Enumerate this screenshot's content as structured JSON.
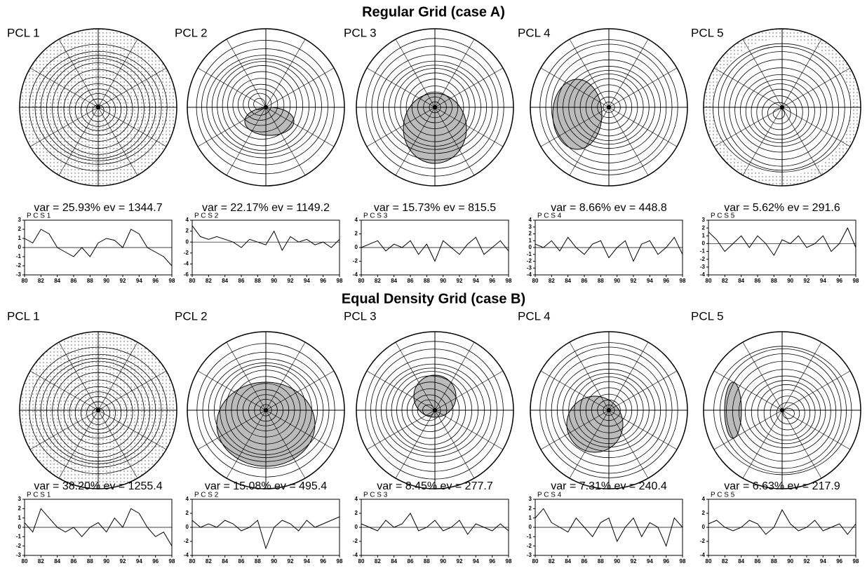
{
  "x": [
    80,
    81,
    82,
    83,
    84,
    85,
    86,
    87,
    88,
    89,
    90,
    91,
    92,
    93,
    94,
    95,
    96,
    97,
    98
  ],
  "xlim": [
    80,
    98
  ],
  "xticks": [
    80,
    82,
    84,
    86,
    88,
    90,
    92,
    94,
    96,
    98
  ],
  "sections": [
    {
      "title": "Regular Grid  (case A)",
      "panels": [
        {
          "label": "PCL 1",
          "stats": "var = 25.93%   ev = 1344.7",
          "series": {
            "title": "P C S   1",
            "ylim": [
              -3,
              3
            ],
            "yticks": [
              -3,
              -2,
              -1,
              0,
              1,
              2,
              3
            ],
            "values": [
              1,
              0.5,
              2,
              1.5,
              0,
              -0.5,
              -1,
              0,
              -1,
              0.5,
              1,
              0.8,
              0,
              2,
              1.5,
              0,
              -0.5,
              -1,
              -2
            ]
          }
        },
        {
          "label": "PCL 2",
          "stats": "var = 22.17%   ev = 1149.2",
          "series": {
            "title": "P C S   2",
            "ylim": [
              -6,
              4
            ],
            "yticks": [
              -6,
              -4,
              -2,
              0,
              2,
              4
            ],
            "values": [
              3,
              1,
              0.5,
              1,
              0.5,
              0,
              -1,
              0.5,
              0,
              -0.5,
              2,
              -1.5,
              1,
              0,
              0.5,
              -0.5,
              0,
              -1,
              0.5
            ]
          }
        },
        {
          "label": "PCL 3",
          "stats": "var = 15.73%   ev = 815.5",
          "series": {
            "title": "P C S   3",
            "ylim": [
              -4,
              4
            ],
            "yticks": [
              -4,
              -2,
              0,
              2,
              4
            ],
            "values": [
              0,
              0.5,
              1,
              -0.5,
              0.5,
              0,
              1,
              -1,
              0.5,
              -2,
              1,
              0,
              -1,
              0.5,
              1.5,
              -1,
              0,
              1,
              -0.5
            ]
          }
        },
        {
          "label": "PCL 4",
          "stats": "var = 8.66%   ev = 448.8",
          "series": {
            "title": "P C S   4",
            "ylim": [
              -4,
              4
            ],
            "yticks": [
              -4,
              -3,
              -2,
              -1,
              0,
              1,
              2,
              3,
              4
            ],
            "values": [
              0.5,
              0,
              1,
              -0.5,
              1.5,
              0,
              -1,
              0.5,
              1,
              -1.5,
              0,
              1,
              -2,
              0.5,
              1,
              -1,
              0,
              1.5,
              -1
            ]
          }
        },
        {
          "label": "PCL 5",
          "stats": "var = 5.62%   ev = 291.6",
          "series": {
            "title": "P C S   5",
            "ylim": [
              -4,
              3
            ],
            "yticks": [
              -4,
              -3,
              -2,
              -1,
              0,
              1,
              2,
              3
            ],
            "values": [
              1.5,
              0.5,
              -1,
              0,
              1,
              -0.5,
              1,
              0,
              -1.5,
              0.5,
              0,
              1,
              -0.5,
              0,
              1,
              -1,
              0,
              2,
              -0.5
            ]
          }
        }
      ]
    },
    {
      "title": "Equal Density Grid  (case B)",
      "panels": [
        {
          "label": "PCL 1",
          "stats": "var = 38.20%   ev = 1255.4",
          "series": {
            "title": "P C S   1",
            "ylim": [
              -3,
              3
            ],
            "yticks": [
              -3,
              -2,
              -1,
              0,
              1,
              2,
              3
            ],
            "values": [
              0.5,
              -0.5,
              2,
              1,
              0,
              -0.5,
              0,
              -1,
              0,
              0.5,
              -0.5,
              1,
              0,
              2,
              1.5,
              0,
              -1,
              -0.5,
              -2
            ]
          }
        },
        {
          "label": "PCL 2",
          "stats": "var = 15.08%   ev = 495.4",
          "series": {
            "title": "P C S   2",
            "ylim": [
              -4,
              4
            ],
            "yticks": [
              -4,
              -2,
              0,
              2,
              4
            ],
            "values": [
              1,
              0,
              0.5,
              0,
              1,
              0.5,
              -0.5,
              0,
              1,
              -3,
              0,
              1,
              0.5,
              -0.5,
              1,
              0,
              0.5,
              1,
              1.5
            ]
          }
        },
        {
          "label": "PCL 3",
          "stats": "var = 8.45%   ev = 277.7",
          "series": {
            "title": "P C S   3",
            "ylim": [
              -4,
              4
            ],
            "yticks": [
              -4,
              -2,
              0,
              2,
              4
            ],
            "values": [
              0.5,
              0,
              -0.5,
              1,
              0,
              0.5,
              2,
              -0.5,
              0,
              1,
              -0.5,
              0,
              1,
              -1,
              0.5,
              0,
              -0.5,
              0.5,
              -0.5
            ]
          }
        },
        {
          "label": "PCL 4",
          "stats": "var = 7.31%   ev = 240.4",
          "series": {
            "title": "P C S   4",
            "ylim": [
              -3,
              3
            ],
            "yticks": [
              -3,
              -2,
              -1,
              0,
              1,
              2,
              3
            ],
            "values": [
              1,
              2,
              0.5,
              0,
              -0.5,
              1,
              0,
              -1,
              0.5,
              1,
              -1.5,
              0,
              1,
              -1,
              0.5,
              0,
              -2,
              1,
              0
            ]
          }
        },
        {
          "label": "PCL 5",
          "stats": "var = 6.63%   ev = 217.9",
          "series": {
            "title": "P C S   5",
            "ylim": [
              -4,
              4
            ],
            "yticks": [
              -4,
              -2,
              0,
              2,
              4
            ],
            "values": [
              0.5,
              1,
              0,
              -0.5,
              0,
              1,
              0.5,
              -1,
              0,
              2.5,
              0.5,
              -0.5,
              0,
              1,
              -0.5,
              0,
              0.5,
              -1,
              0.5
            ]
          }
        }
      ]
    }
  ]
}
